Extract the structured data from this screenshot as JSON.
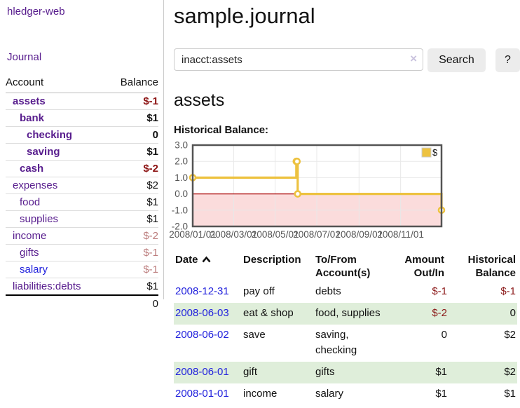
{
  "sidebar": {
    "brand": "hledger-web",
    "journal_label": "Journal",
    "table": {
      "account_header": "Account",
      "balance_header": "Balance",
      "rows": [
        {
          "account": "assets",
          "balance": "$-1",
          "indent_cls": "lvl1",
          "link_cls": "b",
          "balance_cls": "b neg1"
        },
        {
          "account": "bank",
          "balance": "$1",
          "indent_cls": "lvl2",
          "link_cls": "b",
          "balance_cls": "b"
        },
        {
          "account": "checking",
          "balance": "0",
          "indent_cls": "lvl3",
          "link_cls": "b",
          "balance_cls": "b"
        },
        {
          "account": "saving",
          "balance": "$1",
          "indent_cls": "lvl3",
          "link_cls": "b",
          "balance_cls": "b"
        },
        {
          "account": "cash",
          "balance": "$-2",
          "indent_cls": "lvl2",
          "link_cls": "b",
          "balance_cls": "b neg1"
        },
        {
          "account": "expenses",
          "balance": "$2",
          "indent_cls": "lvl1",
          "link_cls": "",
          "balance_cls": ""
        },
        {
          "account": "food",
          "balance": "$1",
          "indent_cls": "lvl2",
          "link_cls": "",
          "balance_cls": ""
        },
        {
          "account": "supplies",
          "balance": "$1",
          "indent_cls": "lvl2",
          "link_cls": "",
          "balance_cls": ""
        },
        {
          "account": "income",
          "balance": "$-2",
          "indent_cls": "lvl1",
          "link_cls": "",
          "balance_cls": "neg2"
        },
        {
          "account": "gifts",
          "balance": "$-1",
          "indent_cls": "lvl2",
          "link_cls": "",
          "balance_cls": "neg2"
        },
        {
          "account": "salary",
          "balance": "$-1",
          "indent_cls": "lvl2",
          "link_cls": "blue",
          "balance_cls": "neg2"
        },
        {
          "account": "liabilities:debts",
          "balance": "$1",
          "indent_cls": "lvl1",
          "link_cls": "",
          "balance_cls": ""
        }
      ],
      "total": "0"
    }
  },
  "main": {
    "title": "sample.journal",
    "search": {
      "value": "inacct:assets",
      "clear_icon": "×",
      "button_label": "Search",
      "help_label": "?"
    },
    "account_heading": "assets",
    "chart_label": "Historical Balance:",
    "register": {
      "headers": {
        "date": "Date",
        "description": "Description",
        "accounts": "To/From Account(s)",
        "amount": "Amount Out/In",
        "balance": "Historical Balance"
      },
      "rows": [
        {
          "date": "2008-12-31",
          "description": "pay off",
          "accounts": "debts",
          "amount": "$-1",
          "balance": "$-1",
          "amount_cls": "neg",
          "balance_cls": "neg"
        },
        {
          "date": "2008-06-03",
          "description": "eat & shop",
          "accounts": "food, supplies",
          "amount": "$-2",
          "balance": "0",
          "amount_cls": "neg",
          "balance_cls": ""
        },
        {
          "date": "2008-06-02",
          "description": "save",
          "accounts": "saving, checking",
          "amount": "0",
          "balance": "$2",
          "amount_cls": "",
          "balance_cls": ""
        },
        {
          "date": "2008-06-01",
          "description": "gift",
          "accounts": "gifts",
          "amount": "$1",
          "balance": "$2",
          "amount_cls": "",
          "balance_cls": ""
        },
        {
          "date": "2008-01-01",
          "description": "income",
          "accounts": "salary",
          "amount": "$1",
          "balance": "$1",
          "amount_cls": "",
          "balance_cls": ""
        }
      ]
    }
  },
  "colors": {
    "brand_purple": "#571c8d",
    "link_blue": "#2222dd",
    "negative_strong": "#8c1212",
    "negative_soft": "#bc7d7d",
    "row_stripe_green": "#dfeeda",
    "series_gold": "#edc240"
  },
  "chart_data": {
    "type": "line",
    "step": true,
    "title": "Historical Balance:",
    "x_range": [
      "2008-01-01",
      "2008-12-31"
    ],
    "ylim": [
      -2,
      3
    ],
    "series": [
      {
        "name": "$",
        "color": "#edc240",
        "points": [
          {
            "date": "2008-01-01",
            "value": 1
          },
          {
            "date": "2008-06-01",
            "value": 2
          },
          {
            "date": "2008-06-02",
            "value": 2
          },
          {
            "date": "2008-06-03",
            "value": 0
          },
          {
            "date": "2008-12-31",
            "value": -1
          }
        ]
      }
    ],
    "x_ticks": [
      {
        "date": "2008-01-01",
        "label": "2008/01/01"
      },
      {
        "date": "2008-03-01",
        "label": "2008/03/01"
      },
      {
        "date": "2008-05-01",
        "label": "2008/05/01"
      },
      {
        "date": "2008-07-01",
        "label": "2008/07/01"
      },
      {
        "date": "2008-09-01",
        "label": "2008/09/01"
      },
      {
        "date": "2008-11-01",
        "label": "2008/11/01"
      }
    ],
    "y_ticks": [
      {
        "value": 3,
        "label": "3.0"
      },
      {
        "value": 2,
        "label": "2.0"
      },
      {
        "value": 1,
        "label": "1.0"
      },
      {
        "value": 0,
        "label": "0.0"
      },
      {
        "value": -1,
        "label": "-1.0"
      },
      {
        "value": -2,
        "label": "-2.0"
      }
    ],
    "legend": {
      "label": "$",
      "position": "top-right"
    },
    "grid": true,
    "colors": {
      "grid": "#e8e8e8",
      "border": "#545454",
      "zero_line": "#aa0000",
      "negative_region": "#fbdcdc"
    }
  }
}
